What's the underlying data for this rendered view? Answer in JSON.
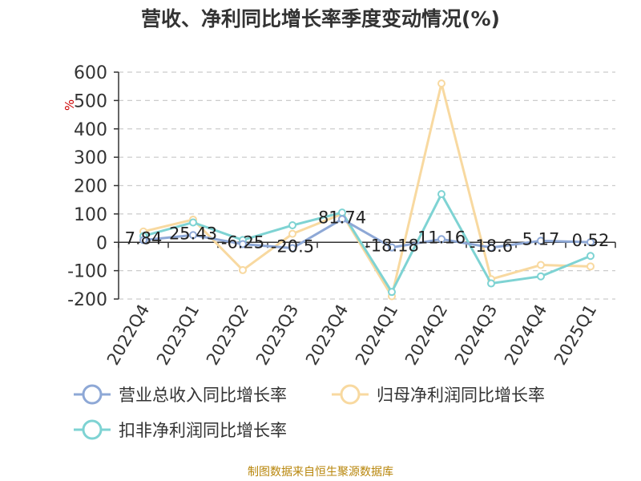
{
  "title": "营收、净利同比增长率季度变动情况(%)",
  "source": "制图数据来自恒生聚源数据库",
  "chart_data": {
    "type": "line",
    "categories": [
      "2022Q4",
      "2023Q1",
      "2023Q2",
      "2023Q3",
      "2023Q4",
      "2024Q1",
      "2024Q2",
      "2024Q3",
      "2024Q4",
      "2025Q1"
    ],
    "ylabel": "%",
    "ylim": [
      -200,
      600
    ],
    "yticks": [
      "600",
      "500",
      "400",
      "300",
      "200",
      "100",
      "0",
      "-100",
      "-200"
    ],
    "grid": true,
    "legend_position": "bottom",
    "series": [
      {
        "name": "营业总收入同比增长率",
        "color": "#8ea8d6",
        "values": [
          7.84,
          25.43,
          -6.25,
          -20.5,
          81.74,
          -18.18,
          11.16,
          -18.6,
          5.17,
          0.52
        ],
        "labels": [
          "7.84",
          "25.43",
          "-6.25",
          "-20.5",
          "81.74",
          "-18.18",
          "11.16",
          "-18.6",
          "5.17",
          "0.52"
        ]
      },
      {
        "name": "归母净利润同比增长率",
        "color": "#f8d9a0",
        "values": [
          38,
          80,
          -98,
          30,
          100,
          -190,
          560,
          -130,
          -80,
          -85
        ]
      },
      {
        "name": "扣非净利润同比增长率",
        "color": "#7ed3d3",
        "values": [
          22,
          70,
          8,
          60,
          105,
          -175,
          170,
          -145,
          -120,
          -48
        ]
      }
    ]
  }
}
